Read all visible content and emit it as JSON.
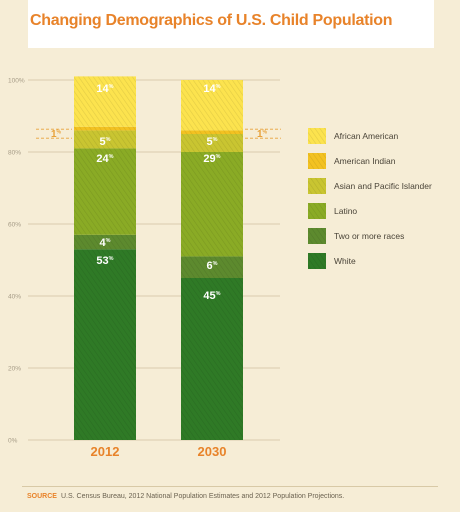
{
  "title": "Changing Demographics of U.S. Child Population",
  "source_label": "SOURCE",
  "source_text": "U.S. Census Bureau, 2012 National Population Estimates and 2012 Population Projections.",
  "chart_data": {
    "type": "bar",
    "stacked": true,
    "title": "Changing Demographics of U.S. Child Population",
    "categories": [
      "2012",
      "2030"
    ],
    "series": [
      {
        "name": "White",
        "values": [
          53,
          45
        ],
        "color": "#2f7a26"
      },
      {
        "name": "Two or more races",
        "values": [
          4,
          6
        ],
        "color": "#5d8a2e"
      },
      {
        "name": "Latino",
        "values": [
          24,
          29
        ],
        "color": "#8aab25"
      },
      {
        "name": "Asian and Pacific Islander",
        "values": [
          5,
          5
        ],
        "color": "#c9c531"
      },
      {
        "name": "American Indian",
        "values": [
          1,
          1
        ],
        "color": "#f3c221"
      },
      {
        "name": "African American",
        "values": [
          14,
          14
        ],
        "color": "#fce34e"
      }
    ],
    "value_labels": [
      {
        "series": "White",
        "labels": [
          "53%",
          "45%"
        ]
      },
      {
        "series": "Two or more races",
        "labels": [
          "4%",
          "6%"
        ]
      },
      {
        "series": "Latino",
        "labels": [
          "24%",
          "29%"
        ]
      },
      {
        "series": "Asian and Pacific Islander",
        "labels": [
          "5%",
          "5%"
        ]
      },
      {
        "series": "American Indian",
        "labels": [
          "1%",
          "1%"
        ]
      },
      {
        "series": "African American",
        "labels": [
          "14%",
          "14%"
        ]
      }
    ],
    "y_ticks": [
      "0%",
      "20%",
      "40%",
      "60%",
      "80%",
      "100%"
    ],
    "ylim": [
      0,
      100
    ],
    "legend_position": "right",
    "legend_order": [
      "African American",
      "American Indian",
      "Asian and Pacific Islander",
      "Latino",
      "Two or more races",
      "White"
    ],
    "grid": true,
    "colors": {
      "axis_text": "#a59b86",
      "grid": "#d9ccae",
      "category_label": "#e8832a",
      "bar_label": "#ffffff",
      "callout": "#e8a23a"
    }
  }
}
